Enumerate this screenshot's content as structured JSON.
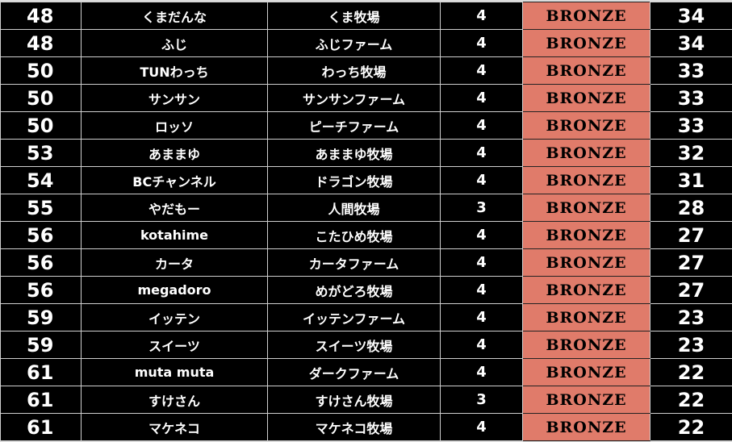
{
  "colors": {
    "tier_bronze": "#e07b6a",
    "background": "#000000",
    "grid": "#cfcfcf"
  },
  "rows": [
    {
      "rank": "48",
      "name": "くまだんな",
      "farm": "くま牧場",
      "count": "4",
      "tier": "BRONZE",
      "score": "34"
    },
    {
      "rank": "48",
      "name": "ふじ",
      "farm": "ふじファーム",
      "count": "4",
      "tier": "BRONZE",
      "score": "34"
    },
    {
      "rank": "50",
      "name": "TUNわっち",
      "farm": "わっち牧場",
      "count": "4",
      "tier": "BRONZE",
      "score": "33"
    },
    {
      "rank": "50",
      "name": "サンサン",
      "farm": "サンサンファーム",
      "count": "4",
      "tier": "BRONZE",
      "score": "33"
    },
    {
      "rank": "50",
      "name": "ロッソ",
      "farm": "ピーチファーム",
      "count": "4",
      "tier": "BRONZE",
      "score": "33"
    },
    {
      "rank": "53",
      "name": "あままゆ",
      "farm": "あままゆ牧場",
      "count": "4",
      "tier": "BRONZE",
      "score": "32"
    },
    {
      "rank": "54",
      "name": "BCチャンネル",
      "farm": "ドラゴン牧場",
      "count": "4",
      "tier": "BRONZE",
      "score": "31"
    },
    {
      "rank": "55",
      "name": "やだもー",
      "farm": "人間牧場",
      "count": "3",
      "tier": "BRONZE",
      "score": "28"
    },
    {
      "rank": "56",
      "name": "kotahime",
      "farm": "こたひめ牧場",
      "count": "4",
      "tier": "BRONZE",
      "score": "27"
    },
    {
      "rank": "56",
      "name": "カータ",
      "farm": "カータファーム",
      "count": "4",
      "tier": "BRONZE",
      "score": "27"
    },
    {
      "rank": "56",
      "name": "megadoro",
      "farm": "めがどろ牧場",
      "count": "4",
      "tier": "BRONZE",
      "score": "27"
    },
    {
      "rank": "59",
      "name": "イッテン",
      "farm": "イッテンファーム",
      "count": "4",
      "tier": "BRONZE",
      "score": "23"
    },
    {
      "rank": "59",
      "name": "スイーツ",
      "farm": "スイーツ牧場",
      "count": "4",
      "tier": "BRONZE",
      "score": "23"
    },
    {
      "rank": "61",
      "name": "muta muta",
      "farm": "ダークファーム",
      "count": "4",
      "tier": "BRONZE",
      "score": "22"
    },
    {
      "rank": "61",
      "name": "すけさん",
      "farm": "すけさん牧場",
      "count": "3",
      "tier": "BRONZE",
      "score": "22"
    },
    {
      "rank": "61",
      "name": "マケネコ",
      "farm": "マケネコ牧場",
      "count": "4",
      "tier": "BRONZE",
      "score": "22"
    }
  ]
}
